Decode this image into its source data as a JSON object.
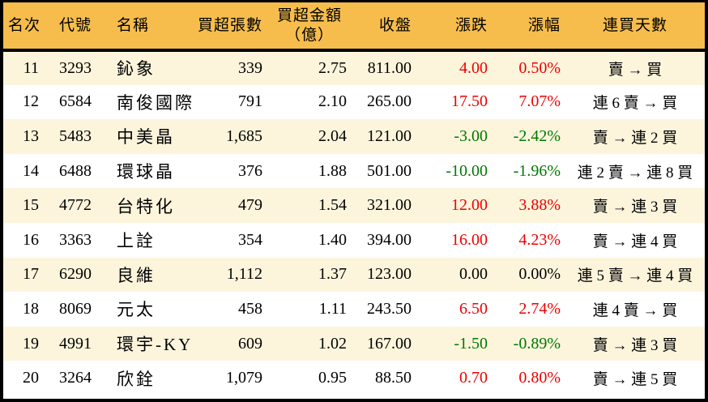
{
  "colors": {
    "header_bg": "#F6BD4D",
    "row_odd_bg": "#FCF5DC",
    "row_even_bg": "#FFFFFF",
    "up": "#EE0000",
    "down": "#007800",
    "text": "#000000",
    "border": "#000000"
  },
  "table": {
    "headers": [
      "名次",
      "代號",
      "名稱",
      "買超張數",
      "買超金額\n（億）",
      "收盤",
      "漲跌",
      "漲幅",
      "連買天數"
    ],
    "rows": [
      {
        "rank": "11",
        "code": "3293",
        "name": "鈊象",
        "volume": "339",
        "amount": "2.75",
        "close": "811.00",
        "change": "4.00",
        "change_pct": "0.50%",
        "streak": "賣 → 買",
        "trend": "up"
      },
      {
        "rank": "12",
        "code": "6584",
        "name": "南俊國際",
        "volume": "791",
        "amount": "2.10",
        "close": "265.00",
        "change": "17.50",
        "change_pct": "7.07%",
        "streak": "連 6 賣 → 買",
        "trend": "up"
      },
      {
        "rank": "13",
        "code": "5483",
        "name": "中美晶",
        "volume": "1,685",
        "amount": "2.04",
        "close": "121.00",
        "change": "-3.00",
        "change_pct": "-2.42%",
        "streak": "賣 → 連 2 買",
        "trend": "down"
      },
      {
        "rank": "14",
        "code": "6488",
        "name": "環球晶",
        "volume": "376",
        "amount": "1.88",
        "close": "501.00",
        "change": "-10.00",
        "change_pct": "-1.96%",
        "streak": "連 2 賣 → 連 8 買",
        "trend": "down"
      },
      {
        "rank": "15",
        "code": "4772",
        "name": "台特化",
        "volume": "479",
        "amount": "1.54",
        "close": "321.00",
        "change": "12.00",
        "change_pct": "3.88%",
        "streak": "賣 → 連 3 買",
        "trend": "up"
      },
      {
        "rank": "16",
        "code": "3363",
        "name": "上詮",
        "volume": "354",
        "amount": "1.40",
        "close": "394.00",
        "change": "16.00",
        "change_pct": "4.23%",
        "streak": "賣 → 連 4 買",
        "trend": "up"
      },
      {
        "rank": "17",
        "code": "6290",
        "name": "良維",
        "volume": "1,112",
        "amount": "1.37",
        "close": "123.00",
        "change": "0.00",
        "change_pct": "0.00%",
        "streak": "連 5 賣 → 連 4 買",
        "trend": "flat"
      },
      {
        "rank": "18",
        "code": "8069",
        "name": "元太",
        "volume": "458",
        "amount": "1.11",
        "close": "243.50",
        "change": "6.50",
        "change_pct": "2.74%",
        "streak": "連 4 賣 → 買",
        "trend": "up"
      },
      {
        "rank": "19",
        "code": "4991",
        "name": "環宇-KY",
        "volume": "609",
        "amount": "1.02",
        "close": "167.00",
        "change": "-1.50",
        "change_pct": "-0.89%",
        "streak": "賣 → 連 3 買",
        "trend": "down"
      },
      {
        "rank": "20",
        "code": "3264",
        "name": "欣銓",
        "volume": "1,079",
        "amount": "0.95",
        "close": "88.50",
        "change": "0.70",
        "change_pct": "0.80%",
        "streak": "賣 → 連 5 買",
        "trend": "up"
      }
    ]
  },
  "chart_data": {
    "type": "table",
    "title": "",
    "columns": [
      "名次",
      "代號",
      "名稱",
      "買超張數",
      "買超金額（億）",
      "收盤",
      "漲跌",
      "漲幅",
      "連買天數"
    ],
    "rows": [
      [
        "11",
        "3293",
        "鈊象",
        "339",
        "2.75",
        "811.00",
        "4.00",
        "0.50%",
        "賣 → 買"
      ],
      [
        "12",
        "6584",
        "南俊國際",
        "791",
        "2.10",
        "265.00",
        "17.50",
        "7.07%",
        "連 6 賣 → 買"
      ],
      [
        "13",
        "5483",
        "中美晶",
        "1,685",
        "2.04",
        "121.00",
        "-3.00",
        "-2.42%",
        "賣 → 連 2 買"
      ],
      [
        "14",
        "6488",
        "環球晶",
        "376",
        "1.88",
        "501.00",
        "-10.00",
        "-1.96%",
        "連 2 賣 → 連 8 買"
      ],
      [
        "15",
        "4772",
        "台特化",
        "479",
        "1.54",
        "321.00",
        "12.00",
        "3.88%",
        "賣 → 連 3 買"
      ],
      [
        "16",
        "3363",
        "上詮",
        "354",
        "1.40",
        "394.00",
        "16.00",
        "4.23%",
        "賣 → 連 4 買"
      ],
      [
        "17",
        "6290",
        "良維",
        "1,112",
        "1.37",
        "123.00",
        "0.00",
        "0.00%",
        "連 5 賣 → 連 4 買"
      ],
      [
        "18",
        "8069",
        "元太",
        "458",
        "1.11",
        "243.50",
        "6.50",
        "2.74%",
        "連 4 賣 → 買"
      ],
      [
        "19",
        "4991",
        "環宇-KY",
        "609",
        "1.02",
        "167.00",
        "-1.50",
        "-0.89%",
        "賣 → 連 3 買"
      ],
      [
        "20",
        "3264",
        "欣銓",
        "1,079",
        "0.95",
        "88.50",
        "0.70",
        "0.80%",
        "賣 → 連 5 買"
      ]
    ]
  }
}
